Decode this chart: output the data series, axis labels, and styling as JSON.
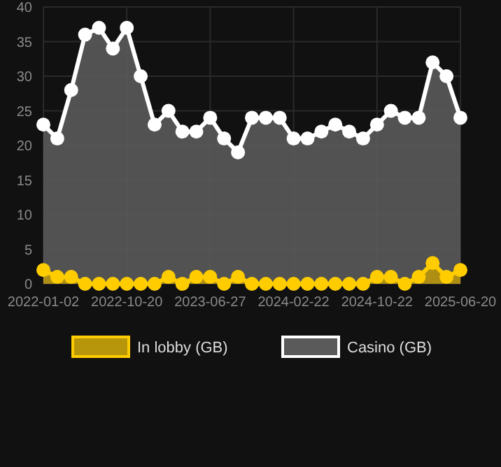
{
  "chart_data": {
    "type": "area",
    "categories": [
      "2022-01-02",
      null,
      null,
      null,
      null,
      null,
      "2022-10-20",
      null,
      null,
      null,
      null,
      null,
      "2023-06-27",
      null,
      null,
      null,
      null,
      null,
      "2024-02-22",
      null,
      null,
      null,
      null,
      null,
      "2024-10-22",
      null,
      null,
      null,
      null,
      null,
      "2025-06-20"
    ],
    "series": [
      {
        "name": "In lobby (GB)",
        "color": "#ffcc00",
        "values": [
          2,
          1,
          1,
          0,
          0,
          0,
          0,
          0,
          0,
          1,
          0,
          1,
          1,
          0,
          1,
          0,
          0,
          0,
          0,
          0,
          0,
          0,
          0,
          0,
          1,
          1,
          0,
          1,
          3,
          1,
          2
        ]
      },
      {
        "name": "Casino (GB)",
        "color": "#ffffff",
        "values": [
          23,
          21,
          28,
          36,
          37,
          34,
          37,
          30,
          23,
          25,
          22,
          22,
          24,
          21,
          19,
          24,
          24,
          24,
          21,
          21,
          22,
          23,
          22,
          21,
          23,
          25,
          24,
          24,
          32,
          30,
          24
        ]
      }
    ],
    "ylim": [
      0,
      40
    ],
    "yticks": [
      0,
      5,
      10,
      15,
      20,
      25,
      30,
      35,
      40
    ],
    "grid": true,
    "legend": "bottom",
    "marker": "circle"
  }
}
